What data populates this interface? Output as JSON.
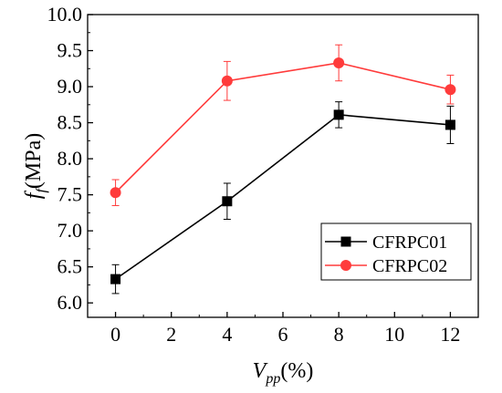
{
  "chart_data": {
    "type": "line",
    "x": [
      0,
      4,
      8,
      12
    ],
    "xlabel": {
      "main": "V",
      "sub": "pp",
      "rest": "(%)"
    },
    "ylabel": {
      "main": "f",
      "sub": "f",
      "rest": "(MPa)"
    },
    "xlim": [
      -1,
      13
    ],
    "ylim": [
      5.8,
      10.0
    ],
    "xticks": [
      "0",
      "2",
      "4",
      "6",
      "8",
      "10",
      "12"
    ],
    "yticks": [
      "6.0",
      "6.5",
      "7.0",
      "7.5",
      "8.0",
      "8.5",
      "9.0",
      "9.5",
      "10.0"
    ],
    "grid": false,
    "legend_position": "bottom-right",
    "series": [
      {
        "name": "CFRPC01",
        "color": "#000000",
        "marker": "square",
        "values": [
          6.33,
          7.41,
          8.61,
          8.47
        ],
        "errors": [
          0.2,
          0.25,
          0.18,
          0.26
        ]
      },
      {
        "name": "CFRPC02",
        "color": "#ff3b3b",
        "marker": "circle",
        "values": [
          7.53,
          9.08,
          9.33,
          8.96
        ],
        "errors": [
          0.18,
          0.27,
          0.25,
          0.2
        ]
      }
    ]
  }
}
